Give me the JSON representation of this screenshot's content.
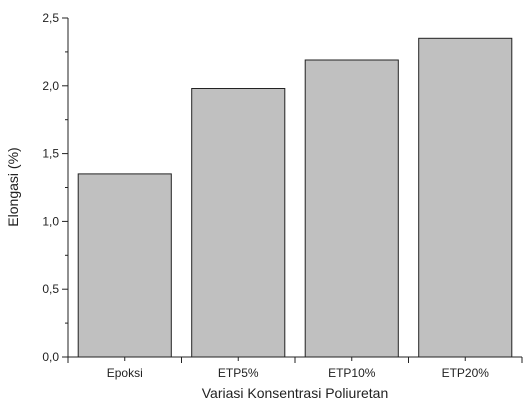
{
  "chart_data": {
    "type": "bar",
    "categories": [
      "Epoksi",
      "ETP5%",
      "ETP10%",
      "ETP20%"
    ],
    "values": [
      1.35,
      1.98,
      2.19,
      2.35
    ],
    "title": "",
    "xlabel": "Variasi Konsentrasi Poliuretan",
    "ylabel": "Elongasi (%)",
    "ylim": [
      0,
      2.5
    ],
    "yticks": [
      0,
      0.5,
      1,
      1.5,
      2,
      2.5
    ],
    "ytick_labels": [
      "0,0",
      "0,5",
      "1,0",
      "1,5",
      "2,0",
      "2,5"
    ],
    "grid": false,
    "legend": "none",
    "bar_color": "#c0c0c0",
    "edge_color": "#222222"
  }
}
